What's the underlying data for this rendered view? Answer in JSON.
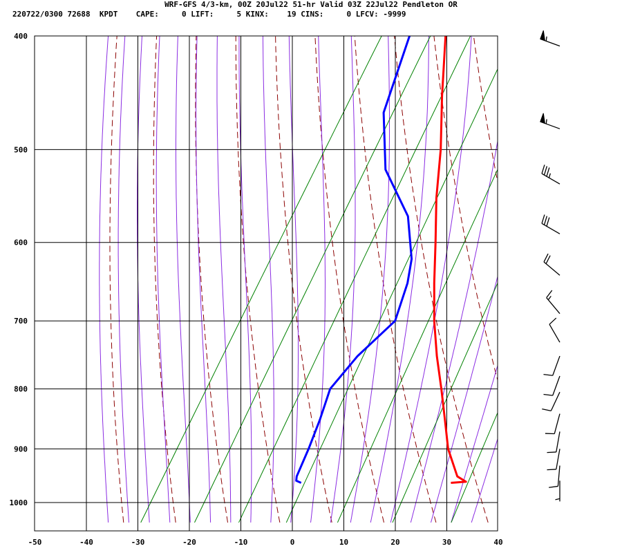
{
  "header": {
    "line1": "WRF-GFS 4/3-km, 00Z 20Jul22 51-hr Valid 03Z 22Jul22 Pendleton OR",
    "line2": "220722/0300 72688  KPDT    CAPE:     0 LIFT:     5 KINX:    19 CINS:     0 LFCV: -9999"
  },
  "colors": {
    "temperature": "#ff0000",
    "dewpoint": "#0000ff",
    "dry_adiabat": "#8b0000",
    "moist_adiabat": "#8a2be2",
    "mixing_ratio": "#008000",
    "grid": "#000000"
  },
  "chart_data": {
    "type": "line",
    "title": "",
    "xlabel": "",
    "ylabel": "",
    "x_axis": "temperature (°C), skewed",
    "y_axis": "pressure (hPa), log scale",
    "xlim": [
      -50,
      40
    ],
    "ylim": [
      1040,
      400
    ],
    "x_ticks": [
      -50,
      -40,
      -30,
      -20,
      -10,
      0,
      10,
      20,
      30,
      40
    ],
    "y_ticks": [
      400,
      500,
      600,
      700,
      800,
      900,
      1000
    ],
    "grid": true,
    "series": [
      {
        "role": "temperature",
        "color": "#ff0000",
        "points": [
          {
            "p": 962,
            "t": 28.5
          },
          {
            "p": 960,
            "t": 31.3
          },
          {
            "p": 950,
            "t": 29.0
          },
          {
            "p": 900,
            "t": 24.0
          },
          {
            "p": 850,
            "t": 20.0
          },
          {
            "p": 800,
            "t": 15.7
          },
          {
            "p": 750,
            "t": 11.0
          },
          {
            "p": 700,
            "t": 6.4
          },
          {
            "p": 650,
            "t": 2.0
          },
          {
            "p": 600,
            "t": -2.5
          },
          {
            "p": 550,
            "t": -7.5
          },
          {
            "p": 500,
            "t": -12.3
          },
          {
            "p": 450,
            "t": -18.3
          },
          {
            "p": 400,
            "t": -24.6
          }
        ]
      },
      {
        "role": "dewpoint",
        "color": "#0000ff",
        "points": [
          {
            "p": 962,
            "t": -0.6
          },
          {
            "p": 958,
            "t": -1.8
          },
          {
            "p": 950,
            "t": -2.2
          },
          {
            "p": 900,
            "t": -3.1
          },
          {
            "p": 850,
            "t": -4.3
          },
          {
            "p": 800,
            "t": -5.9
          },
          {
            "p": 750,
            "t": -4.4
          },
          {
            "p": 700,
            "t": -1.2
          },
          {
            "p": 650,
            "t": -3.2
          },
          {
            "p": 620,
            "t": -5.2
          },
          {
            "p": 570,
            "t": -10.9
          },
          {
            "p": 520,
            "t": -20.7
          },
          {
            "p": 465,
            "t": -27.7
          },
          {
            "p": 400,
            "t": -31.6
          }
        ]
      }
    ],
    "wind_barbs": [
      {
        "p": 408,
        "dir": 290,
        "spd": 55
      },
      {
        "p": 480,
        "dir": 290,
        "spd": 55
      },
      {
        "p": 535,
        "dir": 300,
        "spd": 35
      },
      {
        "p": 590,
        "dir": 300,
        "spd": 30
      },
      {
        "p": 640,
        "dir": 310,
        "spd": 20
      },
      {
        "p": 690,
        "dir": 320,
        "spd": 15
      },
      {
        "p": 730,
        "dir": 330,
        "spd": 10
      },
      {
        "p": 750,
        "dir": 200,
        "spd": 10
      },
      {
        "p": 780,
        "dir": 200,
        "spd": 10
      },
      {
        "p": 805,
        "dir": 205,
        "spd": 10
      },
      {
        "p": 840,
        "dir": 195,
        "spd": 10
      },
      {
        "p": 870,
        "dir": 190,
        "spd": 10
      },
      {
        "p": 900,
        "dir": 190,
        "spd": 10
      },
      {
        "p": 930,
        "dir": 185,
        "spd": 10
      },
      {
        "p": 958,
        "dir": 180,
        "spd": 5
      }
    ]
  }
}
